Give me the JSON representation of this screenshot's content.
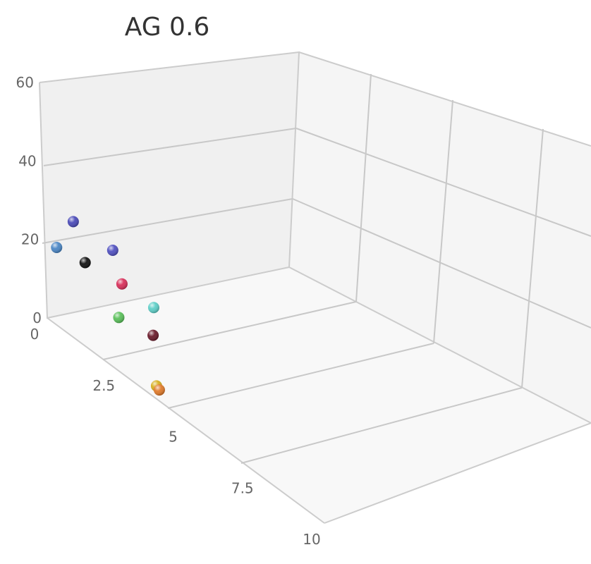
{
  "chart_data": {
    "type": "scatter",
    "subtype": "3d",
    "title": "AG 0.6",
    "grid": true,
    "legend": "none",
    "z_axis": {
      "range": [
        0,
        60
      ],
      "ticks": [
        "0",
        "20",
        "40",
        "60"
      ]
    },
    "depth_axis": {
      "range": [
        0,
        10
      ],
      "ticks": [
        "0",
        "2.5",
        "5",
        "7.5",
        "10"
      ]
    },
    "points": [
      {
        "x": 0.2,
        "y": 29,
        "z": 0.9,
        "color": "#4a4ab8"
      },
      {
        "x": 0.9,
        "y": 25,
        "z": 1.7,
        "color": "#5050c0"
      },
      {
        "x": -0.3,
        "y": 22,
        "z": 0.7,
        "color": "#4a86c5"
      },
      {
        "x": 0.3,
        "y": 20,
        "z": 1.2,
        "color": "#111111"
      },
      {
        "x": 0.9,
        "y": 18,
        "z": 2.0,
        "color": "#d8305a"
      },
      {
        "x": 1.4,
        "y": 15,
        "z": 2.7,
        "color": "#5ecfc8"
      },
      {
        "x": 0.5,
        "y": 11,
        "z": 2.2,
        "color": "#5ac05a"
      },
      {
        "x": 1.0,
        "y": 10,
        "z": 3.0,
        "color": "#6a1a2a"
      },
      {
        "x": 0.4,
        "y": 1,
        "z": 3.6,
        "color": "#d8b020"
      },
      {
        "x": 0.4,
        "y": 0.5,
        "z": 3.7,
        "color": "#e07a2a"
      }
    ]
  }
}
